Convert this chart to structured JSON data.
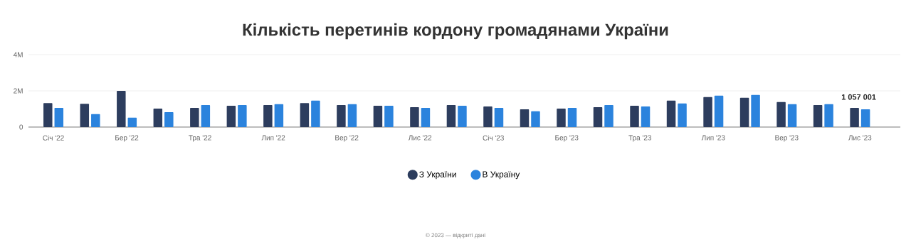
{
  "chart_data": {
    "type": "bar",
    "title": "Кількість перетинів кордону громадянами України",
    "categories": [
      "Січ '22",
      null,
      "Бер '22",
      null,
      "Тра '22",
      null,
      "Лип '22",
      null,
      "Вер '22",
      null,
      "Лис '22",
      null,
      "Січ '23",
      null,
      "Бер '23",
      null,
      "Тра '23",
      null,
      "Лип '23",
      null,
      "Вер '23",
      null,
      "Лис '23"
    ],
    "series": [
      {
        "name": "З України",
        "color": "#2d3d5e",
        "values": [
          1320000,
          1280000,
          2000000,
          1020000,
          1060000,
          1180000,
          1220000,
          1320000,
          1220000,
          1180000,
          1100000,
          1220000,
          1140000,
          980000,
          1020000,
          1100000,
          1180000,
          1460000,
          1660000,
          1620000,
          1380000,
          1220000,
          1057001
        ],
        "value_labels": [
          null,
          null,
          null,
          null,
          null,
          null,
          null,
          null,
          null,
          null,
          null,
          null,
          null,
          null,
          null,
          null,
          null,
          null,
          null,
          null,
          null,
          null,
          "1 057 001"
        ]
      },
      {
        "name": "В Україну",
        "color": "#2b83dd",
        "values": [
          1060000,
          720000,
          520000,
          820000,
          1220000,
          1220000,
          1260000,
          1460000,
          1260000,
          1180000,
          1060000,
          1180000,
          1060000,
          870000,
          1060000,
          1220000,
          1140000,
          1300000,
          1740000,
          1770000,
          1260000,
          1260000,
          980000
        ]
      }
    ],
    "ylim": [
      0,
      4000000
    ],
    "yticks": [
      0,
      {
        "value": 2000000,
        "label": "2M"
      },
      {
        "value": 4000000,
        "label": "4M"
      }
    ],
    "grid": "y",
    "legend": "bottom",
    "annotations": [
      "© 2023 — відкриті дані"
    ]
  }
}
